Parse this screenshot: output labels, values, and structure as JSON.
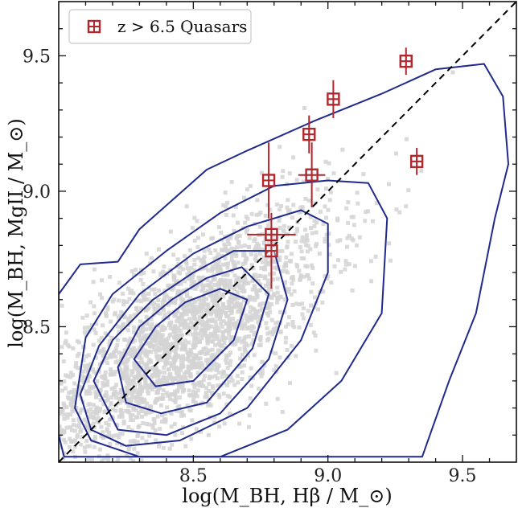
{
  "chart_data": {
    "type": "scatter",
    "title": "",
    "xlabel": "log(M_BH, Hβ / M_⊙)",
    "ylabel": "log(M_BH, MgII / M_⊙)",
    "xlim": [
      8.0,
      9.7
    ],
    "ylim": [
      8.0,
      9.7
    ],
    "x_ticks": [
      8.5,
      9.0,
      9.5
    ],
    "y_ticks": [
      8.5,
      9.0,
      9.5
    ],
    "x_tick_labels": [
      "8.5",
      "9.0",
      "9.5"
    ],
    "y_tick_labels": [
      "8.5",
      "9.0",
      "9.5"
    ],
    "grid": false,
    "legend_position": "top-left",
    "one_to_one_line": {
      "style": "dashed",
      "color": "#000000"
    },
    "background_sample": {
      "color": "#d3d3d3",
      "center": [
        8.45,
        8.45
      ],
      "sigma": [
        0.28,
        0.24
      ],
      "correlation": 0.72,
      "count": 2600
    },
    "contours": [
      {
        "level": 1,
        "points": [
          [
            8.0,
            8.62
          ],
          [
            8.08,
            8.73
          ],
          [
            8.22,
            8.74
          ],
          [
            8.3,
            8.86
          ],
          [
            8.55,
            9.08
          ],
          [
            8.7,
            9.15
          ],
          [
            8.95,
            9.26
          ],
          [
            9.2,
            9.36
          ],
          [
            9.4,
            9.45
          ],
          [
            9.58,
            9.47
          ],
          [
            9.65,
            9.35
          ],
          [
            9.67,
            9.1
          ],
          [
            9.62,
            8.9
          ],
          [
            9.55,
            8.55
          ],
          [
            9.45,
            8.3
          ],
          [
            9.35,
            8.02
          ],
          [
            8.02,
            8.02
          ],
          [
            8.0,
            8.1
          ]
        ]
      },
      {
        "level": 2,
        "points": [
          [
            8.06,
            8.2
          ],
          [
            8.1,
            8.46
          ],
          [
            8.2,
            8.62
          ],
          [
            8.4,
            8.78
          ],
          [
            8.6,
            8.92
          ],
          [
            8.8,
            9.02
          ],
          [
            9.0,
            9.04
          ],
          [
            9.15,
            9.03
          ],
          [
            9.22,
            8.9
          ],
          [
            9.2,
            8.55
          ],
          [
            9.05,
            8.3
          ],
          [
            8.85,
            8.12
          ],
          [
            8.6,
            8.02
          ],
          [
            8.3,
            8.02
          ],
          [
            8.12,
            8.08
          ]
        ]
      },
      {
        "level": 3,
        "points": [
          [
            8.08,
            8.25
          ],
          [
            8.15,
            8.43
          ],
          [
            8.3,
            8.62
          ],
          [
            8.5,
            8.77
          ],
          [
            8.7,
            8.87
          ],
          [
            8.9,
            8.93
          ],
          [
            9.0,
            8.88
          ],
          [
            9.0,
            8.7
          ],
          [
            8.9,
            8.45
          ],
          [
            8.7,
            8.2
          ],
          [
            8.45,
            8.08
          ],
          [
            8.25,
            8.06
          ],
          [
            8.12,
            8.12
          ]
        ]
      },
      {
        "level": 4,
        "points": [
          [
            8.13,
            8.3
          ],
          [
            8.2,
            8.45
          ],
          [
            8.35,
            8.6
          ],
          [
            8.5,
            8.7
          ],
          [
            8.65,
            8.78
          ],
          [
            8.8,
            8.78
          ],
          [
            8.85,
            8.6
          ],
          [
            8.78,
            8.38
          ],
          [
            8.6,
            8.18
          ],
          [
            8.4,
            8.1
          ],
          [
            8.22,
            8.12
          ]
        ]
      },
      {
        "level": 5,
        "points": [
          [
            8.22,
            8.35
          ],
          [
            8.3,
            8.5
          ],
          [
            8.42,
            8.6
          ],
          [
            8.55,
            8.68
          ],
          [
            8.68,
            8.72
          ],
          [
            8.78,
            8.62
          ],
          [
            8.72,
            8.42
          ],
          [
            8.55,
            8.22
          ],
          [
            8.38,
            8.18
          ],
          [
            8.25,
            8.22
          ]
        ]
      },
      {
        "level": 6,
        "points": [
          [
            8.28,
            8.38
          ],
          [
            8.36,
            8.5
          ],
          [
            8.47,
            8.59
          ],
          [
            8.6,
            8.64
          ],
          [
            8.7,
            8.6
          ],
          [
            8.65,
            8.45
          ],
          [
            8.5,
            8.3
          ],
          [
            8.36,
            8.28
          ]
        ]
      }
    ],
    "series": [
      {
        "name": "z > 6.5 Quasars",
        "color": "#b0272d",
        "points": [
          {
            "x": 8.78,
            "y": 9.04,
            "xerr": 0.02,
            "yerr": 0.14
          },
          {
            "x": 8.79,
            "y": 8.84,
            "xerr": 0.09,
            "yerr": 0.03
          },
          {
            "x": 8.79,
            "y": 8.78,
            "xerr": 0.02,
            "yerr": 0.14
          },
          {
            "x": 8.93,
            "y": 9.21,
            "xerr": 0.02,
            "yerr": 0.07
          },
          {
            "x": 8.94,
            "y": 9.06,
            "xerr": 0.05,
            "yerr": 0.12
          },
          {
            "x": 9.02,
            "y": 9.34,
            "xerr": 0.02,
            "yerr": 0.07
          },
          {
            "x": 9.29,
            "y": 9.48,
            "xerr": 0.02,
            "yerr": 0.05
          },
          {
            "x": 9.33,
            "y": 9.11,
            "xerr": 0.02,
            "yerr": 0.05
          }
        ]
      }
    ],
    "contour_color": "#1f2a8c"
  }
}
